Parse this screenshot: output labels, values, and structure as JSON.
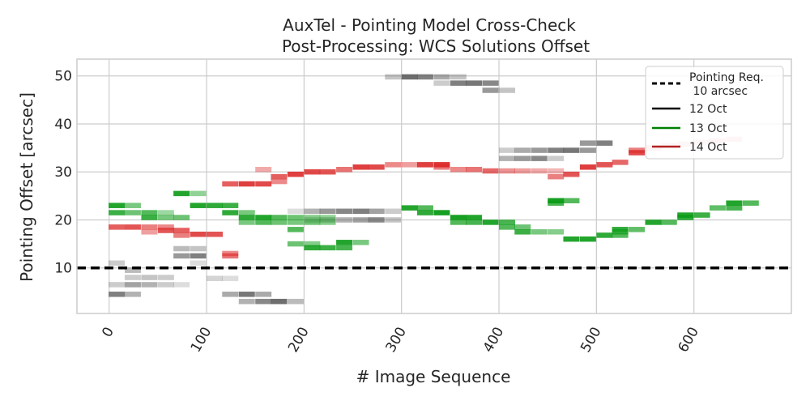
{
  "chart_data": {
    "type": "heatmap",
    "title": "AuxTel - Pointing Model Cross-Check",
    "subtitle": "Post-Processing: WCS Solutions Offset",
    "xlabel": "# Image Sequence",
    "ylabel": "Pointing Offset [arcsec]",
    "xlim": [
      -33,
      700
    ],
    "ylim": [
      0.5,
      53.5
    ],
    "xticks": [
      0,
      100,
      200,
      300,
      400,
      500,
      600
    ],
    "yticks": [
      10,
      20,
      30,
      40,
      50
    ],
    "grid": true,
    "legend_position": "top-right",
    "reference_line": {
      "label": "Pointing Req.\n 10 arcsec",
      "y": 10,
      "style": "dashed",
      "color": "#000000"
    },
    "legend": [
      {
        "label": "Pointing Req.\n 10 arcsec",
        "color": "#000000",
        "style": "dashed"
      },
      {
        "label": "12 Oct",
        "color": "#000000",
        "style": "solid"
      },
      {
        "label": "13 Oct",
        "color": "#008000",
        "style": "solid"
      },
      {
        "label": "14 Oct",
        "color": "#b22222",
        "style": "solid"
      }
    ],
    "bin_width": 16.6,
    "series": [
      {
        "name": "12 Oct",
        "color": "#555555",
        "cells": [
          [
            -0.5,
            4.5,
            0.75
          ],
          [
            16,
            4.5,
            0.45
          ],
          [
            -0.5,
            6.5,
            0.3
          ],
          [
            16,
            6.5,
            0.55
          ],
          [
            33,
            6.5,
            0.45
          ],
          [
            50,
            6.5,
            0.3
          ],
          [
            66,
            6.5,
            0.2
          ],
          [
            16,
            8,
            0.3
          ],
          [
            33,
            8,
            0.35
          ],
          [
            50,
            8,
            0.3
          ],
          [
            -0.5,
            11,
            0.3
          ],
          [
            16,
            9.5,
            0.4
          ],
          [
            66,
            12.5,
            0.6
          ],
          [
            83,
            12.5,
            0.75
          ],
          [
            66,
            14,
            0.4
          ],
          [
            83,
            14,
            0.35
          ],
          [
            83,
            11,
            0.2
          ],
          [
            100,
            7.8,
            0.25
          ],
          [
            116,
            7.8,
            0.2
          ],
          [
            116,
            4.5,
            0.5
          ],
          [
            133,
            4.5,
            0.8
          ],
          [
            150,
            4.5,
            0.5
          ],
          [
            133,
            3,
            0.45
          ],
          [
            150,
            3,
            0.7
          ],
          [
            166,
            3,
            0.85
          ],
          [
            183,
            3,
            0.4
          ],
          [
            183,
            21.8,
            0.2
          ],
          [
            200,
            21.8,
            0.45
          ],
          [
            216,
            21.8,
            0.6
          ],
          [
            233,
            21.8,
            0.7
          ],
          [
            250,
            21.8,
            0.75
          ],
          [
            266,
            21.8,
            0.55
          ],
          [
            283,
            21.8,
            0.3
          ],
          [
            200,
            20,
            0.3
          ],
          [
            216,
            20,
            0.4
          ],
          [
            233,
            20,
            0.45
          ],
          [
            250,
            20,
            0.55
          ],
          [
            266,
            20,
            0.7
          ],
          [
            283,
            20,
            0.35
          ],
          [
            283,
            49.8,
            0.35
          ],
          [
            300,
            49.8,
            0.85
          ],
          [
            316,
            49.8,
            0.75
          ],
          [
            333,
            49.8,
            0.5
          ],
          [
            350,
            49.8,
            0.35
          ],
          [
            333,
            48.5,
            0.3
          ],
          [
            350,
            48.5,
            0.75
          ],
          [
            366,
            48.5,
            0.8
          ],
          [
            383,
            48.5,
            0.7
          ],
          [
            383,
            47,
            0.6
          ],
          [
            400,
            47,
            0.35
          ],
          [
            400,
            34.5,
            0.3
          ],
          [
            416,
            34.5,
            0.5
          ],
          [
            433,
            34.5,
            0.6
          ],
          [
            450,
            34.5,
            0.75
          ],
          [
            466,
            34.5,
            0.8
          ],
          [
            483,
            34.5,
            0.6
          ],
          [
            400,
            32.8,
            0.45
          ],
          [
            416,
            32.8,
            0.6
          ],
          [
            433,
            32.8,
            0.7
          ],
          [
            450,
            32.8,
            0.3
          ],
          [
            483,
            36,
            0.6
          ],
          [
            500,
            36,
            0.75
          ]
        ]
      },
      {
        "name": "13 Oct",
        "color": "#0b9b16",
        "cells": [
          [
            -0.5,
            23,
            0.9
          ],
          [
            16,
            23,
            0.55
          ],
          [
            -0.5,
            21.5,
            0.8
          ],
          [
            16,
            21.5,
            0.6
          ],
          [
            33,
            21.5,
            0.7
          ],
          [
            50,
            21.5,
            0.4
          ],
          [
            33,
            20.5,
            0.8
          ],
          [
            50,
            20.5,
            0.55
          ],
          [
            66,
            20.5,
            0.6
          ],
          [
            66,
            25.5,
            0.9
          ],
          [
            83,
            25.5,
            0.45
          ],
          [
            83,
            23,
            0.9
          ],
          [
            100,
            23,
            0.85
          ],
          [
            116,
            23,
            0.8
          ],
          [
            116,
            21.5,
            0.85
          ],
          [
            133,
            21.5,
            0.55
          ],
          [
            133,
            20.5,
            0.85
          ],
          [
            150,
            20.5,
            0.9
          ],
          [
            166,
            20.5,
            0.7
          ],
          [
            133,
            19.5,
            0.55
          ],
          [
            150,
            19.5,
            0.7
          ],
          [
            166,
            19.5,
            0.6
          ],
          [
            183,
            20.5,
            0.6
          ],
          [
            200,
            20.5,
            0.5
          ],
          [
            216,
            20.5,
            0.45
          ],
          [
            183,
            19.5,
            0.55
          ],
          [
            200,
            19.5,
            0.6
          ],
          [
            216,
            19.5,
            0.5
          ],
          [
            183,
            18,
            0.7
          ],
          [
            183,
            15,
            0.6
          ],
          [
            200,
            15,
            0.5
          ],
          [
            200,
            14.2,
            0.85
          ],
          [
            216,
            14.2,
            0.8
          ],
          [
            233,
            14.2,
            0.75
          ],
          [
            233,
            15.3,
            0.9
          ],
          [
            250,
            15.3,
            0.55
          ],
          [
            300,
            22.5,
            0.9
          ],
          [
            316,
            22.5,
            0.7
          ],
          [
            316,
            21.5,
            0.85
          ],
          [
            333,
            21.5,
            0.95
          ],
          [
            350,
            20.5,
            0.95
          ],
          [
            366,
            20.5,
            0.9
          ],
          [
            350,
            19.5,
            0.7
          ],
          [
            366,
            19.5,
            0.75
          ],
          [
            383,
            19.5,
            0.9
          ],
          [
            400,
            19.5,
            0.75
          ],
          [
            400,
            18.5,
            0.7
          ],
          [
            416,
            18.5,
            0.6
          ],
          [
            416,
            17.5,
            0.8
          ],
          [
            433,
            17.5,
            0.55
          ],
          [
            450,
            17.5,
            0.5
          ],
          [
            450,
            24,
            0.95
          ],
          [
            466,
            24,
            0.7
          ],
          [
            450,
            23.5,
            0.75
          ],
          [
            466,
            16,
            0.9
          ],
          [
            483,
            16,
            0.9
          ],
          [
            500,
            16.8,
            0.85
          ],
          [
            516,
            16.8,
            0.7
          ],
          [
            516,
            18,
            0.85
          ],
          [
            533,
            18,
            0.65
          ],
          [
            516,
            17.5,
            0.7
          ],
          [
            550,
            19.5,
            0.9
          ],
          [
            566,
            19.5,
            0.7
          ],
          [
            583,
            21,
            0.9
          ],
          [
            600,
            21,
            0.8
          ],
          [
            583,
            20.5,
            0.85
          ],
          [
            616,
            22.5,
            0.65
          ],
          [
            633,
            23.5,
            0.9
          ],
          [
            650,
            23.5,
            0.7
          ],
          [
            633,
            22.5,
            0.75
          ]
        ]
      },
      {
        "name": "14 Oct",
        "color": "#dc2a2a",
        "cells": [
          [
            -0.5,
            18.5,
            0.75
          ],
          [
            16,
            18.5,
            0.8
          ],
          [
            33,
            18.5,
            0.6
          ],
          [
            33,
            17.5,
            0.45
          ],
          [
            50,
            18.5,
            0.55
          ],
          [
            50,
            17.8,
            0.8
          ],
          [
            66,
            17.8,
            0.75
          ],
          [
            66,
            16.8,
            0.6
          ],
          [
            83,
            17,
            0.85
          ],
          [
            100,
            17,
            0.8
          ],
          [
            116,
            12.5,
            0.65
          ],
          [
            116,
            13,
            0.55
          ],
          [
            116,
            27.5,
            0.75
          ],
          [
            133,
            27.5,
            0.9
          ],
          [
            150,
            27.5,
            0.85
          ],
          [
            150,
            30.5,
            0.4
          ],
          [
            166,
            29,
            0.75
          ],
          [
            166,
            28,
            0.55
          ],
          [
            183,
            29.5,
            0.9
          ],
          [
            200,
            30,
            0.85
          ],
          [
            216,
            30,
            0.8
          ],
          [
            233,
            30.5,
            0.65
          ],
          [
            250,
            31,
            0.9
          ],
          [
            266,
            31,
            0.85
          ],
          [
            283,
            31.5,
            0.55
          ],
          [
            300,
            31.5,
            0.45
          ],
          [
            316,
            31.5,
            0.9
          ],
          [
            333,
            31.5,
            0.95
          ],
          [
            333,
            31,
            0.6
          ],
          [
            350,
            30.5,
            0.55
          ],
          [
            366,
            30.5,
            0.65
          ],
          [
            383,
            30.2,
            0.7
          ],
          [
            400,
            30.2,
            0.5
          ],
          [
            416,
            30.2,
            0.45
          ],
          [
            433,
            30.2,
            0.4
          ],
          [
            450,
            30.2,
            0.35
          ],
          [
            450,
            29,
            0.6
          ],
          [
            466,
            29.5,
            0.8
          ],
          [
            483,
            31,
            0.9
          ],
          [
            500,
            31.5,
            0.8
          ],
          [
            516,
            32,
            0.7
          ],
          [
            533,
            34.5,
            0.6
          ],
          [
            533,
            34,
            0.85
          ],
          [
            550,
            35,
            0.35
          ],
          [
            566,
            35.5,
            0.3
          ],
          [
            583,
            35.8,
            0.25
          ],
          [
            600,
            36.2,
            0.25
          ],
          [
            616,
            36.5,
            0.3
          ],
          [
            633,
            36.8,
            0.3
          ]
        ]
      }
    ]
  }
}
